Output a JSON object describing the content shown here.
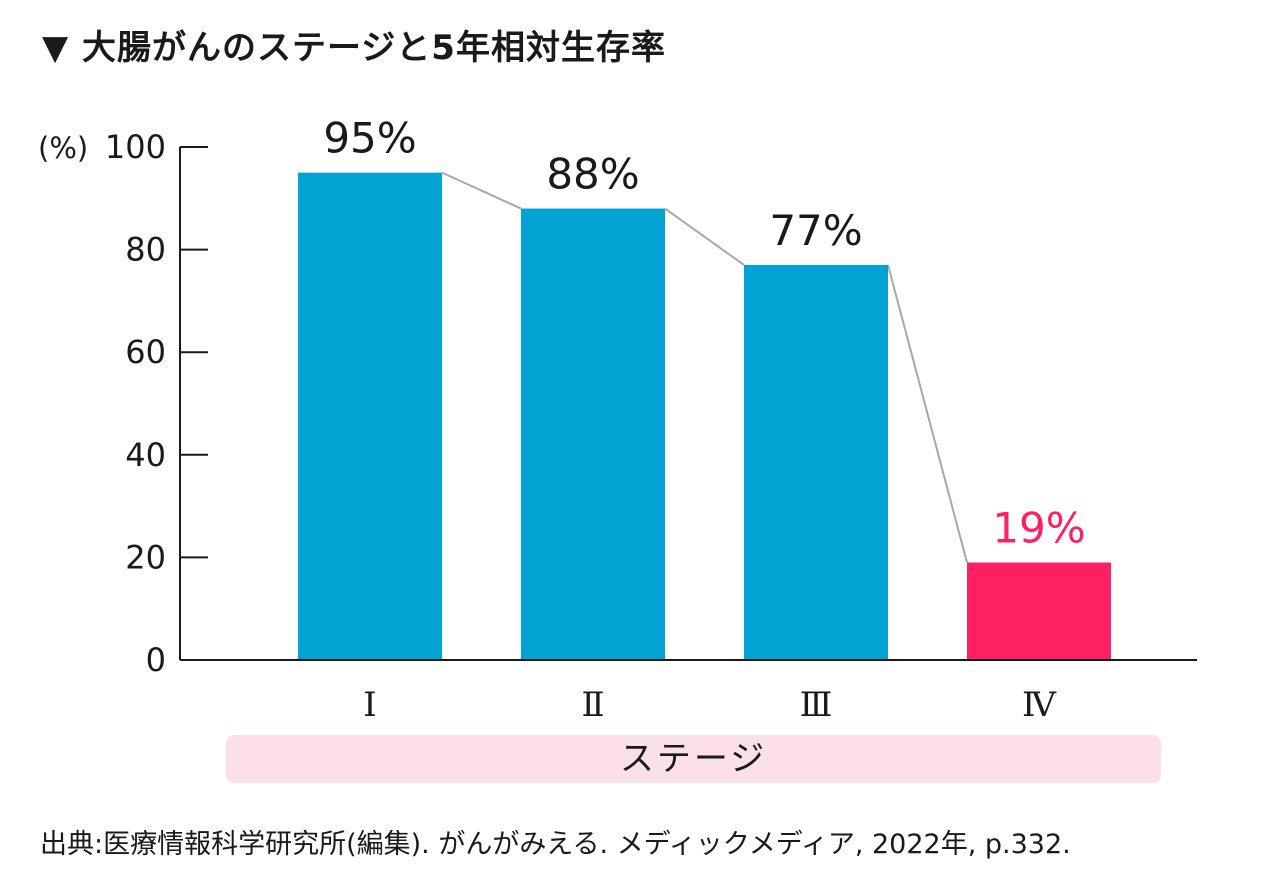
{
  "title": "▼ 大腸がんのステージと5年相対生存率",
  "source": "出典:医療情報科学研究所(編集). がんがみえる. メディックメディア, 2022年, p.332.",
  "colors": {
    "bar": "#00a3d2",
    "highlight": "#ff1f63",
    "band": "#fce0e8",
    "connector": "#a8a8a8",
    "text": "#1a1a1a"
  },
  "chart_data": {
    "type": "bar",
    "title": "▼ 大腸がんのステージと5年相対生存率",
    "xlabel": "ステージ",
    "ylabel": "(%)",
    "ylim": [
      0,
      100
    ],
    "yticks": [
      "0",
      "20",
      "40",
      "60",
      "80",
      "100"
    ],
    "categories": [
      "Ⅰ",
      "Ⅱ",
      "Ⅲ",
      "Ⅳ"
    ],
    "values": [
      95,
      88,
      77,
      19
    ],
    "data_labels": [
      "95%",
      "88%",
      "77%",
      "19%"
    ],
    "highlight_index": 3,
    "grid": false,
    "legend": "none"
  }
}
